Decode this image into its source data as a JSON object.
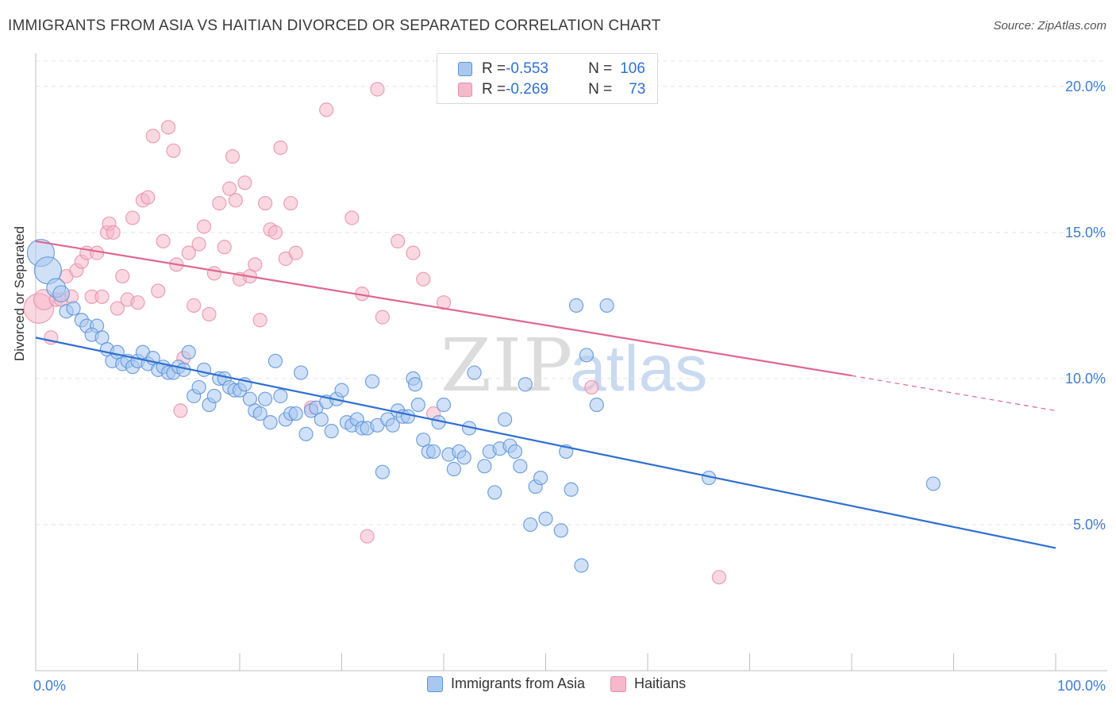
{
  "title": "IMMIGRANTS FROM ASIA VS HAITIAN DIVORCED OR SEPARATED CORRELATION CHART",
  "source": "Source: ZipAtlas.com",
  "watermark": {
    "zip": "ZIP",
    "atlas": "atlas"
  },
  "legend_top": {
    "rows": [
      {
        "r_label": "R = ",
        "r_value": "-0.553",
        "n_label": "N = ",
        "n_value": "106"
      },
      {
        "r_label": "R = ",
        "r_value": "-0.269",
        "n_label": "N = ",
        "n_value": "73"
      }
    ]
  },
  "legend_bottom": [
    "Immigrants from Asia",
    "Haitians"
  ],
  "colors": {
    "asia_fill": "#a9c8f0",
    "asia_stroke": "#5b93d9",
    "asia_line": "#2f6fd0",
    "haiti_fill": "#f6b8cb",
    "haiti_stroke": "#e890ac",
    "haiti_line": "#e06690",
    "tick_label": "#3e7cd8",
    "grid": "#e3e3e3"
  },
  "chart_data": {
    "type": "scatter",
    "title": "IMMIGRANTS FROM ASIA VS HAITIAN DIVORCED OR SEPARATED CORRELATION CHART",
    "xlabel": "",
    "ylabel": "Divorced or Separated",
    "xlim": [
      0,
      100
    ],
    "ylim": [
      0,
      21
    ],
    "x_tick_labels": [
      "0.0%",
      "100.0%"
    ],
    "y_ticks": [
      5,
      10,
      15,
      20
    ],
    "y_tick_labels": [
      "5.0%",
      "10.0%",
      "15.0%",
      "20.0%"
    ],
    "grid": true,
    "legend_position": "bottom",
    "series": [
      {
        "name": "Immigrants from Asia",
        "R": -0.553,
        "N": 106,
        "trend": {
          "x": [
            0,
            100
          ],
          "y": [
            11.4,
            4.2
          ]
        },
        "points": [
          [
            0.5,
            14.3,
            2
          ],
          [
            1.2,
            13.7,
            2
          ],
          [
            2.0,
            13.1,
            1.4
          ],
          [
            2.5,
            12.9,
            1.2
          ],
          [
            3.0,
            12.3,
            1
          ],
          [
            3.7,
            12.4,
            1
          ],
          [
            4.5,
            12.0,
            1
          ],
          [
            5.0,
            11.8,
            1
          ],
          [
            6.0,
            11.8,
            1
          ],
          [
            5.5,
            11.5,
            1
          ],
          [
            6.5,
            11.4,
            1
          ],
          [
            7.0,
            11.0,
            1
          ],
          [
            7.5,
            10.6,
            1
          ],
          [
            8.0,
            10.9,
            1
          ],
          [
            8.5,
            10.5,
            1
          ],
          [
            9.0,
            10.6,
            1
          ],
          [
            9.5,
            10.4,
            1
          ],
          [
            10.0,
            10.6,
            1
          ],
          [
            10.5,
            10.9,
            1
          ],
          [
            11.0,
            10.5,
            1
          ],
          [
            11.5,
            10.7,
            1
          ],
          [
            12.0,
            10.3,
            1
          ],
          [
            12.5,
            10.4,
            1
          ],
          [
            13.0,
            10.2,
            1
          ],
          [
            13.5,
            10.2,
            1
          ],
          [
            14.0,
            10.4,
            1
          ],
          [
            14.5,
            10.3,
            1
          ],
          [
            15.0,
            10.9,
            1
          ],
          [
            15.5,
            9.4,
            1
          ],
          [
            16.0,
            9.7,
            1
          ],
          [
            16.5,
            10.3,
            1
          ],
          [
            17.0,
            9.1,
            1
          ],
          [
            17.5,
            9.4,
            1
          ],
          [
            18.0,
            10.0,
            1
          ],
          [
            18.5,
            10.0,
            1
          ],
          [
            19.0,
            9.7,
            1
          ],
          [
            19.5,
            9.6,
            1
          ],
          [
            20.0,
            9.6,
            1
          ],
          [
            20.5,
            9.8,
            1
          ],
          [
            21.0,
            9.3,
            1
          ],
          [
            21.5,
            8.9,
            1
          ],
          [
            22.0,
            8.8,
            1
          ],
          [
            22.5,
            9.3,
            1
          ],
          [
            23.0,
            8.5,
            1
          ],
          [
            23.5,
            10.6,
            1
          ],
          [
            24.0,
            9.4,
            1
          ],
          [
            24.5,
            8.6,
            1
          ],
          [
            25.0,
            8.8,
            1
          ],
          [
            25.5,
            8.8,
            1
          ],
          [
            26.0,
            10.2,
            1
          ],
          [
            26.5,
            8.1,
            1
          ],
          [
            27.0,
            8.9,
            1
          ],
          [
            27.5,
            9.0,
            1
          ],
          [
            28.0,
            8.6,
            1
          ],
          [
            28.5,
            9.2,
            1
          ],
          [
            29.0,
            8.2,
            1
          ],
          [
            29.5,
            9.3,
            1
          ],
          [
            30.0,
            9.6,
            1
          ],
          [
            30.5,
            8.5,
            1
          ],
          [
            31.0,
            8.4,
            1
          ],
          [
            31.5,
            8.6,
            1
          ],
          [
            32.0,
            8.3,
            1
          ],
          [
            32.5,
            8.3,
            1
          ],
          [
            33.0,
            9.9,
            1
          ],
          [
            33.5,
            8.4,
            1
          ],
          [
            34.0,
            6.8,
            1
          ],
          [
            34.5,
            8.6,
            1
          ],
          [
            35.0,
            8.4,
            1
          ],
          [
            35.5,
            8.9,
            1
          ],
          [
            36.0,
            8.7,
            1
          ],
          [
            36.5,
            8.7,
            1
          ],
          [
            37.0,
            10.0,
            1
          ],
          [
            37.2,
            9.8,
            1
          ],
          [
            37.5,
            9.1,
            1
          ],
          [
            38.0,
            7.9,
            1
          ],
          [
            38.5,
            7.5,
            1
          ],
          [
            39.0,
            7.5,
            1
          ],
          [
            39.5,
            8.5,
            1
          ],
          [
            40.0,
            9.1,
            1
          ],
          [
            40.5,
            7.4,
            1
          ],
          [
            41.0,
            6.9,
            1
          ],
          [
            41.5,
            7.5,
            1
          ],
          [
            42.0,
            7.3,
            1
          ],
          [
            42.5,
            8.3,
            1
          ],
          [
            43.0,
            10.2,
            1
          ],
          [
            44.0,
            7.0,
            1
          ],
          [
            44.5,
            7.5,
            1
          ],
          [
            45.0,
            6.1,
            1
          ],
          [
            45.5,
            7.6,
            1
          ],
          [
            46.0,
            8.6,
            1
          ],
          [
            46.5,
            7.7,
            1
          ],
          [
            47.0,
            7.5,
            1
          ],
          [
            47.5,
            7.0,
            1
          ],
          [
            48.0,
            9.8,
            1
          ],
          [
            48.5,
            5.0,
            1
          ],
          [
            49.0,
            6.3,
            1
          ],
          [
            49.5,
            6.6,
            1
          ],
          [
            50.0,
            5.2,
            1
          ],
          [
            51.5,
            4.8,
            1
          ],
          [
            52.0,
            7.5,
            1
          ],
          [
            52.5,
            6.2,
            1
          ],
          [
            53.0,
            12.5,
            1
          ],
          [
            53.5,
            3.6,
            1
          ],
          [
            54.0,
            10.8,
            1
          ],
          [
            55.0,
            9.1,
            1
          ],
          [
            56.0,
            12.5,
            1
          ],
          [
            66.0,
            6.6,
            1
          ],
          [
            88.0,
            6.4,
            1
          ]
        ]
      },
      {
        "name": "Haitians",
        "R": -0.269,
        "N": 73,
        "trend": {
          "x": [
            0,
            80
          ],
          "y": [
            14.7,
            10.1
          ],
          "dashed_to": {
            "x": 100,
            "y": 8.9
          }
        },
        "points": [
          [
            0.3,
            12.4,
            2.2
          ],
          [
            0.8,
            12.7,
            1.5
          ],
          [
            1.5,
            11.4,
            1
          ],
          [
            2.0,
            12.7,
            1
          ],
          [
            2.5,
            12.7,
            1
          ],
          [
            3.0,
            13.5,
            1
          ],
          [
            3.5,
            12.8,
            1
          ],
          [
            4.0,
            13.7,
            1
          ],
          [
            4.5,
            14.0,
            1
          ],
          [
            5.0,
            14.3,
            1
          ],
          [
            5.5,
            12.8,
            1
          ],
          [
            6.0,
            14.3,
            1
          ],
          [
            6.5,
            12.8,
            1
          ],
          [
            7.0,
            15.0,
            1
          ],
          [
            7.2,
            15.3,
            1
          ],
          [
            7.6,
            15.0,
            1
          ],
          [
            8.0,
            12.4,
            1
          ],
          [
            8.5,
            13.5,
            1
          ],
          [
            9.0,
            12.7,
            1
          ],
          [
            9.5,
            15.5,
            1
          ],
          [
            10.0,
            12.6,
            1
          ],
          [
            10.5,
            16.1,
            1
          ],
          [
            11.0,
            16.2,
            1
          ],
          [
            11.5,
            18.3,
            1
          ],
          [
            12.0,
            13.0,
            1
          ],
          [
            12.5,
            14.7,
            1
          ],
          [
            13.0,
            18.6,
            1
          ],
          [
            13.5,
            17.8,
            1
          ],
          [
            13.8,
            13.9,
            1
          ],
          [
            14.2,
            8.9,
            1
          ],
          [
            14.5,
            10.7,
            1
          ],
          [
            15.0,
            14.3,
            1
          ],
          [
            15.5,
            12.5,
            1
          ],
          [
            16.0,
            14.6,
            1
          ],
          [
            16.5,
            15.2,
            1
          ],
          [
            17.0,
            12.2,
            1
          ],
          [
            17.5,
            13.6,
            1
          ],
          [
            18.0,
            16.0,
            1
          ],
          [
            18.5,
            14.5,
            1
          ],
          [
            19.0,
            16.5,
            1
          ],
          [
            19.3,
            17.6,
            1
          ],
          [
            19.6,
            16.1,
            1
          ],
          [
            20.0,
            13.4,
            1
          ],
          [
            20.5,
            16.7,
            1
          ],
          [
            21.0,
            13.5,
            1
          ],
          [
            21.5,
            13.9,
            1
          ],
          [
            22.0,
            12.0,
            1
          ],
          [
            22.5,
            16.0,
            1
          ],
          [
            23.0,
            15.1,
            1
          ],
          [
            23.5,
            15.0,
            1
          ],
          [
            24.0,
            17.9,
            1
          ],
          [
            24.5,
            14.1,
            1
          ],
          [
            25.0,
            16.0,
            1
          ],
          [
            25.5,
            14.3,
            1
          ],
          [
            27.0,
            9.0,
            1
          ],
          [
            28.5,
            19.2,
            1
          ],
          [
            31.0,
            15.5,
            1
          ],
          [
            32.0,
            12.9,
            1
          ],
          [
            32.5,
            4.6,
            1
          ],
          [
            33.5,
            19.9,
            1
          ],
          [
            34.0,
            12.1,
            1
          ],
          [
            35.5,
            14.7,
            1
          ],
          [
            37.0,
            14.3,
            1
          ],
          [
            38.0,
            13.4,
            1
          ],
          [
            39.0,
            8.8,
            1
          ],
          [
            40.0,
            12.6,
            1
          ],
          [
            54.5,
            9.7,
            1
          ],
          [
            67.0,
            3.2,
            1
          ]
        ]
      }
    ]
  }
}
